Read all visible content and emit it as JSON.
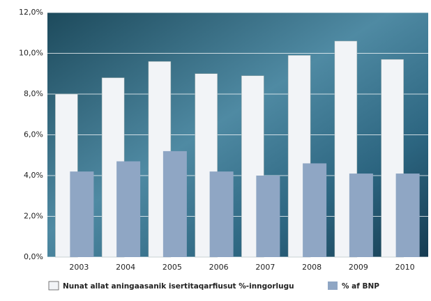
{
  "chart_data": {
    "type": "bar",
    "categories": [
      "2003",
      "2004",
      "2005",
      "2006",
      "2007",
      "2008",
      "2009",
      "2010"
    ],
    "series": [
      {
        "name": "Nunat allat aningaasanik isertitaqarfiusut %-inngorlugu",
        "color": "#f2f4f7",
        "values": [
          8.0,
          8.8,
          9.6,
          9.0,
          8.9,
          9.9,
          10.6,
          9.7
        ]
      },
      {
        "name": "% af BNP",
        "color": "#8fa6c4",
        "values": [
          4.2,
          4.7,
          5.2,
          4.2,
          4.0,
          4.6,
          4.1,
          4.1
        ]
      }
    ],
    "ylim": [
      0,
      12
    ],
    "yticks": [
      {
        "value": 0,
        "label": "0,0%"
      },
      {
        "value": 2,
        "label": "2,0%"
      },
      {
        "value": 4,
        "label": "4,0%"
      },
      {
        "value": 6,
        "label": "6,0%"
      },
      {
        "value": 8,
        "label": "8,0%"
      },
      {
        "value": 10,
        "label": "10,0%"
      },
      {
        "value": 12,
        "label": "12,0%"
      }
    ],
    "grid": true
  }
}
